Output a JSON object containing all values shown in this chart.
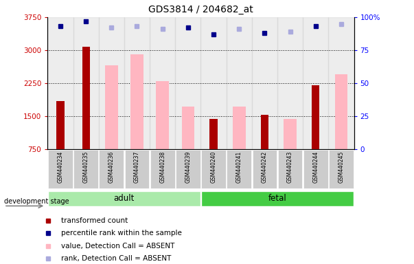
{
  "title": "GDS3814 / 204682_at",
  "samples": [
    "GSM440234",
    "GSM440235",
    "GSM440236",
    "GSM440237",
    "GSM440238",
    "GSM440239",
    "GSM440240",
    "GSM440241",
    "GSM440242",
    "GSM440243",
    "GSM440244",
    "GSM440245"
  ],
  "groups": {
    "adult": [
      0,
      1,
      2,
      3,
      4,
      5
    ],
    "fetal": [
      6,
      7,
      8,
      9,
      10,
      11
    ]
  },
  "dark_red_values": [
    1850,
    3080,
    null,
    null,
    null,
    null,
    1430,
    null,
    1530,
    null,
    2200,
    null
  ],
  "pink_values": [
    null,
    null,
    2650,
    2900,
    2300,
    1720,
    null,
    1720,
    null,
    1430,
    null,
    2450
  ],
  "blue_rank_values": [
    93,
    97,
    null,
    null,
    null,
    92,
    87,
    null,
    88,
    null,
    93,
    null
  ],
  "light_blue_rank_values": [
    null,
    null,
    92,
    93,
    91,
    null,
    null,
    91,
    null,
    89,
    null,
    95
  ],
  "ylim": [
    750,
    3750
  ],
  "right_ylim": [
    0,
    100
  ],
  "yticks": [
    750,
    1500,
    2250,
    3000,
    3750
  ],
  "ytick_labels": [
    "750",
    "1500",
    "2250",
    "3000",
    "3750"
  ],
  "right_yticks": [
    0,
    25,
    50,
    75,
    100
  ],
  "right_ytick_labels": [
    "0",
    "25",
    "50",
    "75",
    "100%"
  ],
  "bar_width": 0.5,
  "dark_red_color": "#AA0000",
  "pink_color": "#FFB6C1",
  "blue_color": "#00008B",
  "light_blue_color": "#AAAADD",
  "adult_group_color": "#AAEAAA",
  "fetal_group_color": "#44CC44",
  "bg_color": "#CCCCCC",
  "legend_items": [
    {
      "label": "transformed count",
      "color": "#AA0000"
    },
    {
      "label": "percentile rank within the sample",
      "color": "#00008B"
    },
    {
      "label": "value, Detection Call = ABSENT",
      "color": "#FFB6C1"
    },
    {
      "label": "rank, Detection Call = ABSENT",
      "color": "#AAAADD"
    }
  ]
}
